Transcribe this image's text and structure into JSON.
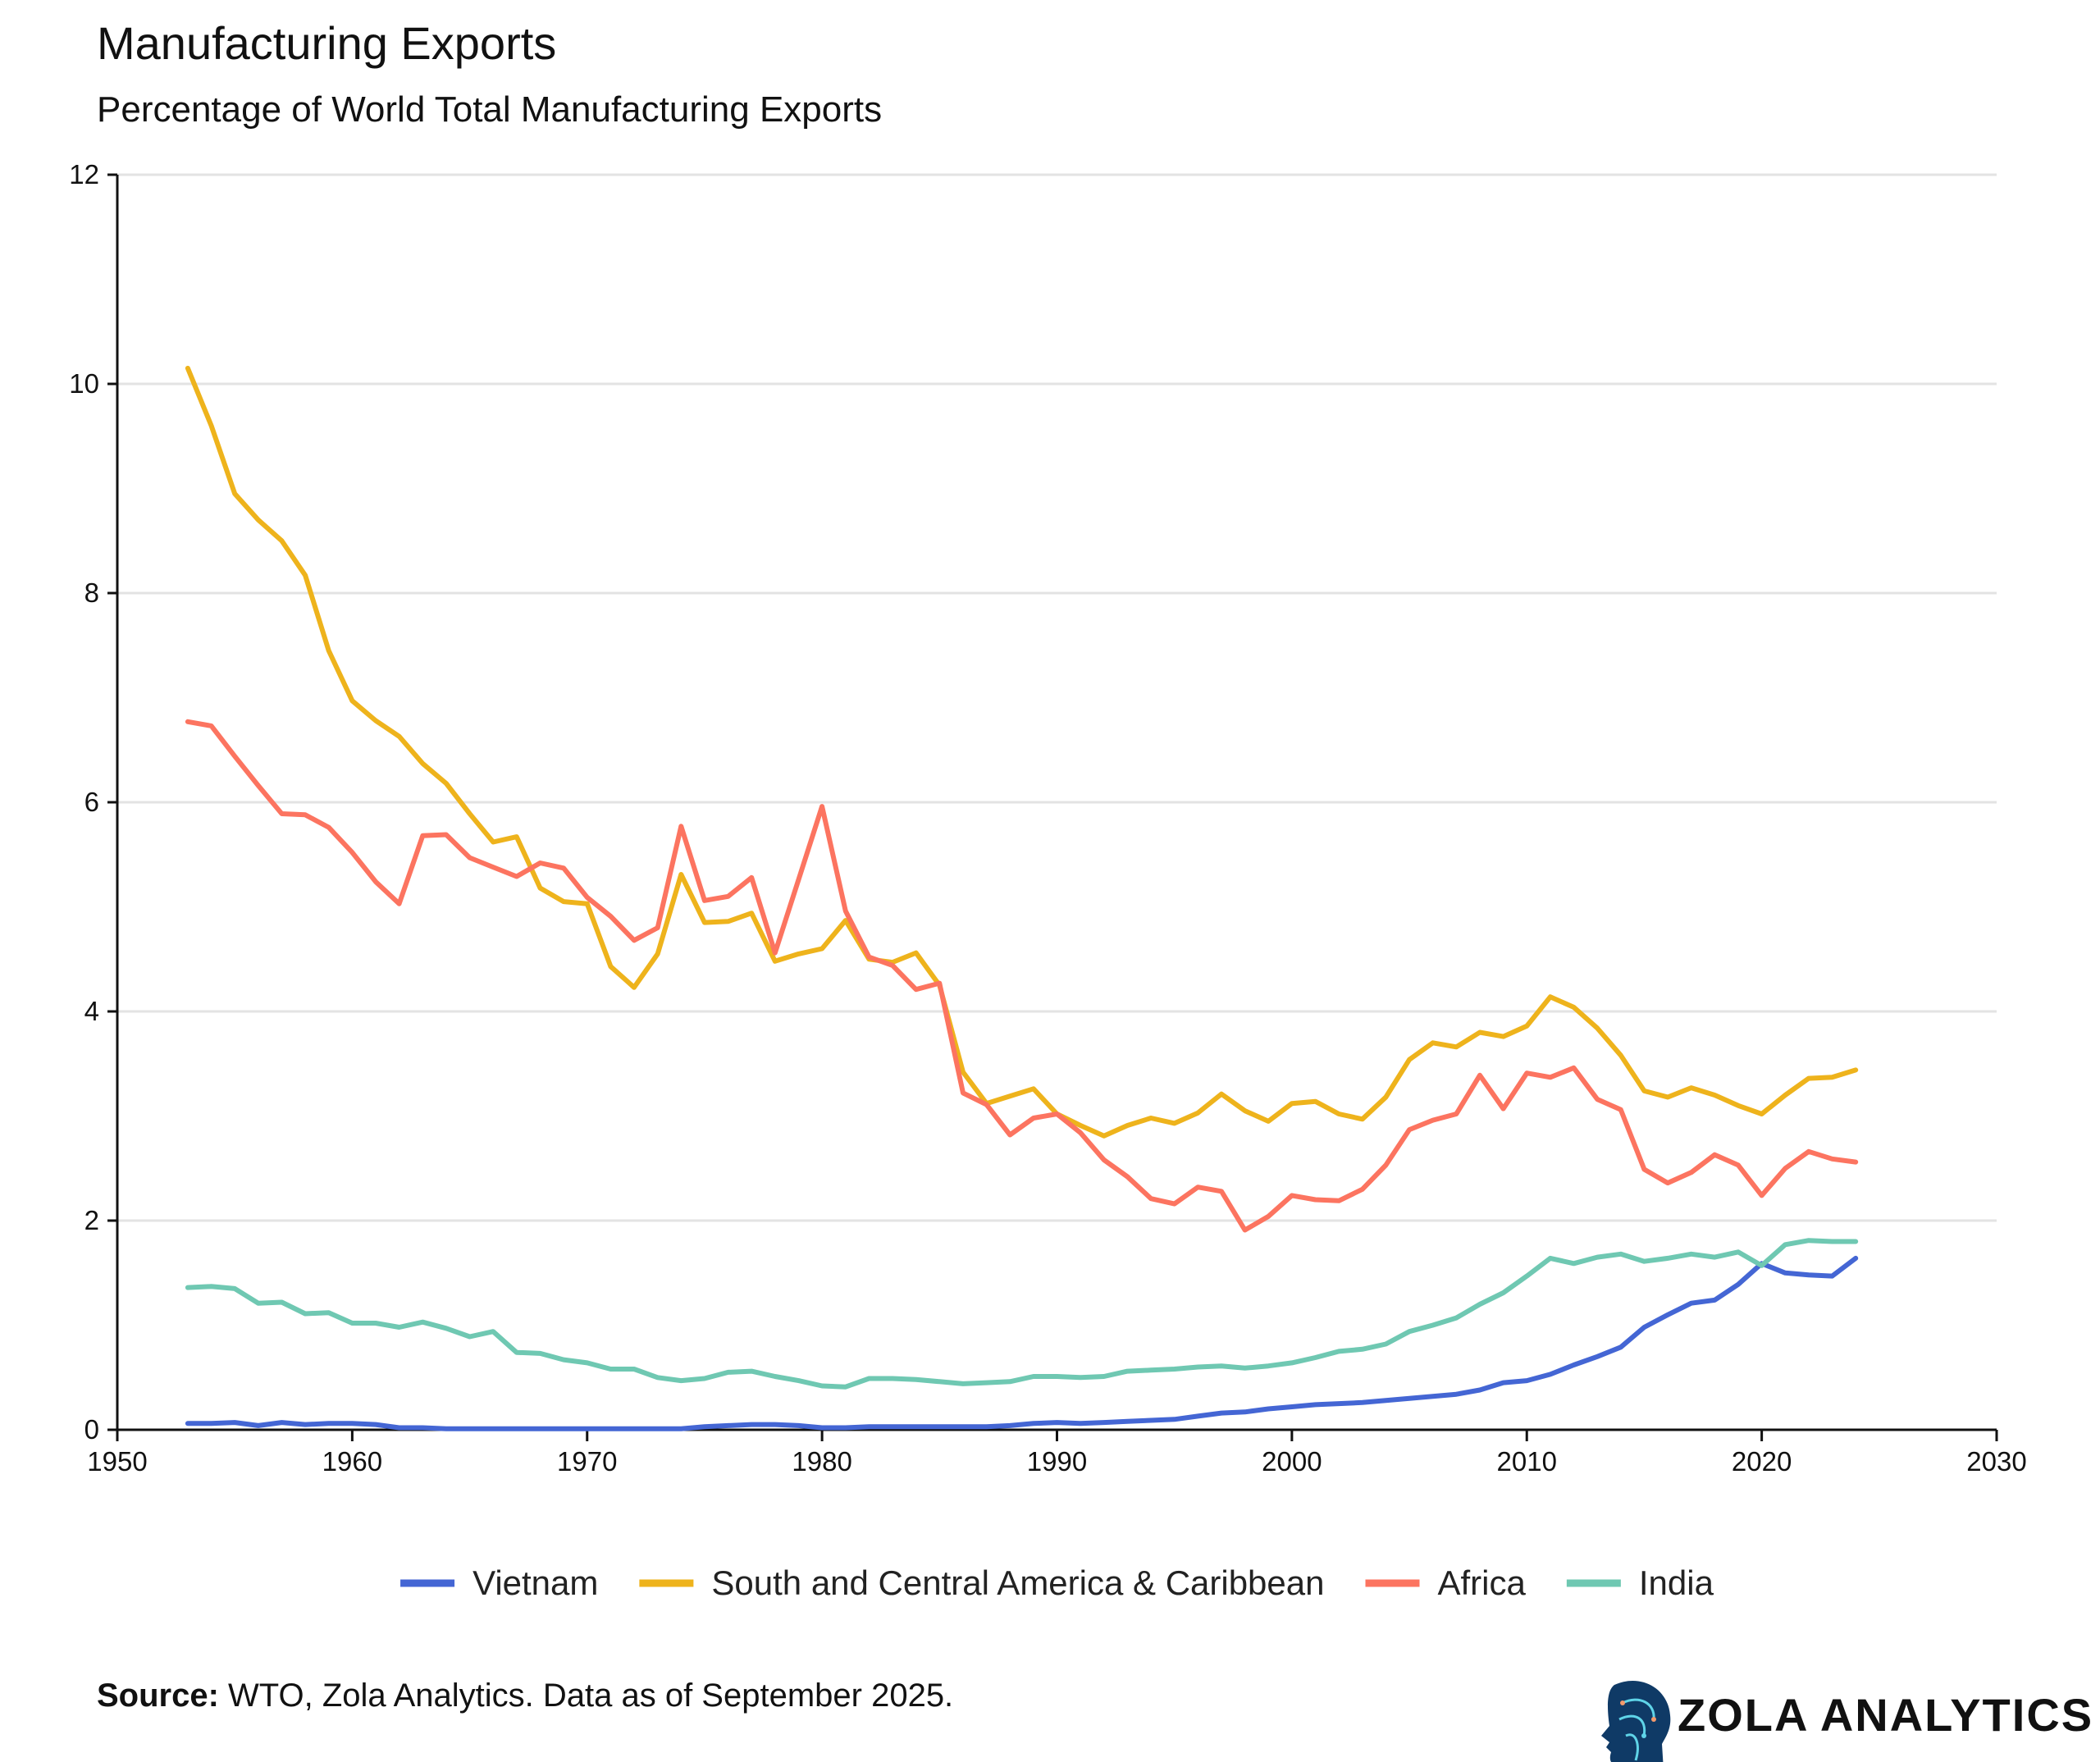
{
  "chart_data": {
    "type": "line",
    "title": "Manufacturing Exports",
    "subtitle": "Percentage of World Total Manufacturing Exports",
    "xlabel": "",
    "ylabel": "",
    "xlim": [
      1950,
      2030
    ],
    "ylim": [
      0,
      12
    ],
    "xticks": [
      "1950",
      "1960",
      "1970",
      "1980",
      "1990",
      "2000",
      "2010",
      "2020",
      "2030"
    ],
    "yticks": [
      "0",
      "2",
      "4",
      "6",
      "8",
      "10",
      "12"
    ],
    "grid": "horizontal",
    "legend": "bottom",
    "x_start": 1953,
    "series": [
      {
        "name": "Vietnam",
        "color": "#4466d4",
        "values": [
          0.06,
          0.06,
          0.07,
          0.04,
          0.07,
          0.05,
          0.06,
          0.06,
          0.05,
          0.02,
          0.02,
          0.01,
          0.01,
          0.01,
          0.01,
          0.01,
          0.01,
          0.01,
          0.01,
          0.01,
          0.01,
          0.01,
          0.03,
          0.04,
          0.05,
          0.05,
          0.04,
          0.02,
          0.02,
          0.03,
          0.03,
          0.03,
          0.03,
          0.03,
          0.03,
          0.04,
          0.06,
          0.07,
          0.06,
          0.07,
          0.08,
          0.09,
          0.1,
          0.13,
          0.16,
          0.17,
          0.2,
          0.22,
          0.24,
          0.25,
          0.26,
          0.28,
          0.3,
          0.32,
          0.34,
          0.38,
          0.45,
          0.47,
          0.53,
          0.62,
          0.7,
          0.79,
          0.98,
          1.1,
          1.21,
          1.24,
          1.39,
          1.59,
          1.5,
          1.48,
          1.47,
          1.64
        ]
      },
      {
        "name": "South and Central America & Caribbean",
        "color": "#eeb31c",
        "values": [
          10.15,
          9.6,
          8.95,
          8.7,
          8.5,
          8.17,
          7.45,
          6.97,
          6.78,
          6.63,
          6.37,
          6.18,
          5.89,
          5.62,
          5.67,
          5.18,
          5.05,
          5.03,
          4.43,
          4.23,
          4.55,
          5.31,
          4.85,
          4.86,
          4.94,
          4.48,
          4.55,
          4.6,
          4.87,
          4.5,
          4.47,
          4.56,
          4.25,
          3.42,
          3.12,
          3.19,
          3.26,
          3.02,
          2.91,
          2.81,
          2.91,
          2.98,
          2.93,
          3.03,
          3.21,
          3.05,
          2.95,
          3.12,
          3.14,
          3.02,
          2.97,
          3.18,
          3.54,
          3.7,
          3.66,
          3.8,
          3.76,
          3.86,
          4.14,
          4.04,
          3.84,
          3.58,
          3.24,
          3.18,
          3.27,
          3.2,
          3.1,
          3.02,
          3.2,
          3.36,
          3.37,
          3.44
        ]
      },
      {
        "name": "Africa",
        "color": "#fc7460",
        "values": [
          6.77,
          6.73,
          6.44,
          6.16,
          5.89,
          5.88,
          5.76,
          5.52,
          5.24,
          5.03,
          5.68,
          5.69,
          5.47,
          5.38,
          5.29,
          5.42,
          5.37,
          5.09,
          4.91,
          4.68,
          4.8,
          5.77,
          5.06,
          5.1,
          5.28,
          4.56,
          5.26,
          5.96,
          4.96,
          4.52,
          4.44,
          4.21,
          4.27,
          3.22,
          3.11,
          2.82,
          2.98,
          3.02,
          2.84,
          2.58,
          2.42,
          2.21,
          2.16,
          2.32,
          2.28,
          1.91,
          2.04,
          2.24,
          2.2,
          2.19,
          2.3,
          2.53,
          2.87,
          2.96,
          3.02,
          3.39,
          3.07,
          3.41,
          3.37,
          3.46,
          3.16,
          3.06,
          2.49,
          2.36,
          2.46,
          2.63,
          2.53,
          2.24,
          2.5,
          2.66,
          2.59,
          2.56
        ]
      },
      {
        "name": "India",
        "color": "#6fc8b2",
        "values": [
          1.36,
          1.37,
          1.35,
          1.21,
          1.22,
          1.11,
          1.12,
          1.02,
          1.02,
          0.98,
          1.03,
          0.97,
          0.89,
          0.94,
          0.74,
          0.73,
          0.67,
          0.64,
          0.58,
          0.58,
          0.5,
          0.47,
          0.49,
          0.55,
          0.56,
          0.51,
          0.47,
          0.42,
          0.41,
          0.49,
          0.49,
          0.48,
          0.46,
          0.44,
          0.45,
          0.46,
          0.51,
          0.51,
          0.5,
          0.51,
          0.56,
          0.57,
          0.58,
          0.6,
          0.61,
          0.59,
          0.61,
          0.64,
          0.69,
          0.75,
          0.77,
          0.82,
          0.94,
          1.0,
          1.07,
          1.2,
          1.31,
          1.47,
          1.64,
          1.59,
          1.65,
          1.68,
          1.61,
          1.64,
          1.68,
          1.65,
          1.7,
          1.57,
          1.77,
          1.81,
          1.8,
          1.8
        ]
      }
    ]
  },
  "footer": {
    "source_label": "Source:",
    "source_text": " WTO, Zola Analytics. Data as of September 2025.",
    "brand": "ZOLA ANALYTICS"
  }
}
